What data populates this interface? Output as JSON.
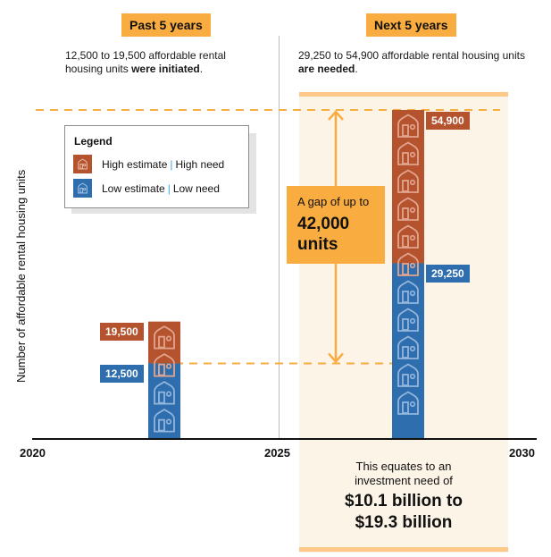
{
  "header": {
    "past": {
      "tag": "Past 5 years",
      "desc_pre": "12,500 to 19,500 affordable rental housing units ",
      "desc_bold": "were initiated",
      "desc_post": "."
    },
    "next": {
      "tag": "Next 5 years",
      "desc_pre": "29,250 to 54,900 affordable rental housing units ",
      "desc_bold": "are needed",
      "desc_post": "."
    }
  },
  "legend": {
    "title": "Legend",
    "items": [
      {
        "estimate": "High estimate",
        "need": "High need",
        "color": "#b5532f",
        "icon": "house-icon"
      },
      {
        "estimate": "Low estimate",
        "need": "Low need",
        "color": "#2e6eae",
        "icon": "house-icon"
      }
    ]
  },
  "gap_callout": {
    "line1": "A gap of up to",
    "line2": "42,000",
    "line3": "units"
  },
  "investment": {
    "line1": "This equates to an",
    "line2": "investment need of",
    "line3": "$10.1 billion to",
    "line4": "$19.3 billion"
  },
  "colors": {
    "high": "#b5532f",
    "low": "#2e6eae",
    "accent": "#f9ac40",
    "shade": "#fdf4e8"
  },
  "chart_data": {
    "type": "bar",
    "title": "",
    "xlabel": "",
    "ylabel": "Number of affordable rental housing units",
    "x_ticks": [
      "2020",
      "2025",
      "2030"
    ],
    "xlim": [
      2020,
      2030
    ],
    "ylim": [
      0,
      54900
    ],
    "grid": false,
    "legend_position": "top-left",
    "categories": [
      "Past 5 years (2020–2025)",
      "Next 5 years (2025–2030)"
    ],
    "series": [
      {
        "name": "Low estimate | Low need",
        "values": [
          12500,
          29250
        ],
        "labels": [
          "12,500",
          "29,250"
        ]
      },
      {
        "name": "High estimate | High need",
        "values": [
          19500,
          54900
        ],
        "labels": [
          "19,500",
          "54,900"
        ]
      }
    ],
    "annotations": [
      {
        "type": "gap",
        "from": 12500,
        "to": 54900,
        "text": "A gap of up to 42,000 units"
      }
    ]
  }
}
